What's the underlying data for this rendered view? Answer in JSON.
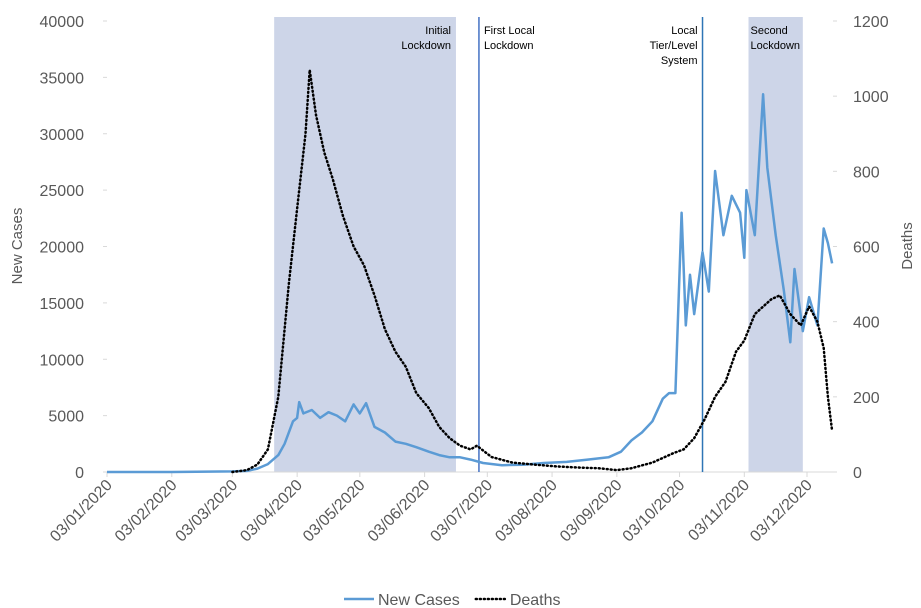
{
  "chart_data": {
    "type": "line",
    "x_title": null,
    "y_title": "New Cases",
    "y2_title": "Deaths",
    "xlim": [
      "03/01/2020",
      "15/12/2020"
    ],
    "xticks": [
      "03/01/2020",
      "03/02/2020",
      "03/03/2020",
      "03/04/2020",
      "03/05/2020",
      "03/06/2020",
      "03/07/2020",
      "03/08/2020",
      "03/09/2020",
      "03/10/2020",
      "03/11/2020",
      "03/12/2020"
    ],
    "ylim": [
      0,
      40000
    ],
    "yticks": [
      0,
      5000,
      10000,
      15000,
      20000,
      25000,
      30000,
      35000,
      40000
    ],
    "y2lim": [
      0,
      1200
    ],
    "y2ticks": [
      0,
      200,
      400,
      600,
      800,
      1000,
      1200
    ],
    "regions": [
      {
        "lines": [
          "Initial",
          "Lockdown"
        ],
        "start": "23/03/2020",
        "end": "18/06/2020",
        "color": "#cdd5e8"
      },
      {
        "lines": [
          "Second",
          "Lockdown"
        ],
        "start": "05/11/2020",
        "end": "01/12/2020",
        "color": "#cdd5e8"
      }
    ],
    "vlines": [
      {
        "lines": [
          "First Local",
          "Lockdown"
        ],
        "at": "29/06/2020",
        "color": "#4472c4"
      },
      {
        "lines": [
          "Local",
          "Tier/Level",
          "System"
        ],
        "at": "14/10/2020",
        "color": "#2e75b6"
      }
    ],
    "series": [
      {
        "name": "New Cases",
        "color": "#5b9bd5",
        "dash": "solid",
        "axis": "y",
        "x": [
          "03/01/2020",
          "03/02/2020",
          "03/03/2020",
          "10/03/2020",
          "15/03/2020",
          "20/03/2020",
          "25/03/2020",
          "28/03/2020",
          "01/04/2020",
          "03/04/2020",
          "04/04/2020",
          "06/04/2020",
          "10/04/2020",
          "14/04/2020",
          "18/04/2020",
          "22/04/2020",
          "26/04/2020",
          "30/04/2020",
          "03/05/2020",
          "06/05/2020",
          "10/05/2020",
          "15/05/2020",
          "20/05/2020",
          "25/05/2020",
          "30/05/2020",
          "05/06/2020",
          "10/06/2020",
          "15/06/2020",
          "20/06/2020",
          "25/06/2020",
          "01/07/2020",
          "10/07/2020",
          "20/07/2020",
          "30/07/2020",
          "10/08/2020",
          "20/08/2020",
          "30/08/2020",
          "05/09/2020",
          "10/09/2020",
          "15/09/2020",
          "20/09/2020",
          "25/09/2020",
          "28/09/2020",
          "01/10/2020",
          "04/10/2020",
          "06/10/2020",
          "08/10/2020",
          "10/10/2020",
          "14/10/2020",
          "17/10/2020",
          "20/10/2020",
          "24/10/2020",
          "28/10/2020",
          "01/11/2020",
          "03/11/2020",
          "04/11/2020",
          "08/11/2020",
          "12/11/2020",
          "14/11/2020",
          "18/11/2020",
          "22/11/2020",
          "25/11/2020",
          "27/11/2020",
          "01/12/2020",
          "04/12/2020",
          "08/12/2020",
          "11/12/2020",
          "13/12/2020",
          "15/12/2020"
        ],
        "values": [
          0,
          0,
          50,
          100,
          300,
          700,
          1500,
          2500,
          4500,
          4800,
          6200,
          5200,
          5500,
          4800,
          5300,
          5000,
          4500,
          6000,
          5200,
          6100,
          4000,
          3500,
          2700,
          2500,
          2200,
          1800,
          1500,
          1300,
          1300,
          1100,
          800,
          600,
          650,
          800,
          900,
          1100,
          1300,
          1800,
          2800,
          3500,
          4500,
          6500,
          7000,
          7000,
          23000,
          13000,
          17500,
          14000,
          19500,
          16000,
          26700,
          21000,
          24500,
          23000,
          19000,
          25000,
          21000,
          33500,
          27000,
          21000,
          16000,
          11500,
          18000,
          12500,
          15500,
          13000,
          21600,
          20300,
          18500
        ]
      },
      {
        "name": "Deaths",
        "color": "#000000",
        "dash": "dotted",
        "axis": "y2",
        "x": [
          "03/03/2020",
          "10/03/2020",
          "15/03/2020",
          "20/03/2020",
          "25/03/2020",
          "30/03/2020",
          "03/04/2020",
          "07/04/2020",
          "09/04/2020",
          "12/04/2020",
          "16/04/2020",
          "20/04/2020",
          "25/04/2020",
          "30/04/2020",
          "05/05/2020",
          "10/05/2020",
          "15/05/2020",
          "20/05/2020",
          "25/05/2020",
          "30/05/2020",
          "05/06/2020",
          "10/06/2020",
          "15/06/2020",
          "20/06/2020",
          "25/06/2020",
          "28/06/2020",
          "05/07/2020",
          "15/07/2020",
          "25/07/2020",
          "05/08/2020",
          "15/08/2020",
          "25/08/2020",
          "03/09/2020",
          "10/09/2020",
          "20/09/2020",
          "30/09/2020",
          "05/10/2020",
          "10/10/2020",
          "15/10/2020",
          "20/10/2020",
          "25/10/2020",
          "30/10/2020",
          "03/11/2020",
          "08/11/2020",
          "12/11/2020",
          "16/11/2020",
          "20/11/2020",
          "25/11/2020",
          "30/11/2020",
          "04/12/2020",
          "08/12/2020",
          "11/12/2020",
          "13/12/2020",
          "15/12/2020"
        ],
        "values": [
          0,
          5,
          20,
          60,
          200,
          500,
          700,
          900,
          1070,
          950,
          850,
          780,
          680,
          600,
          550,
          470,
          380,
          320,
          280,
          210,
          170,
          120,
          90,
          70,
          60,
          70,
          40,
          25,
          20,
          15,
          12,
          10,
          5,
          10,
          25,
          50,
          60,
          90,
          140,
          200,
          240,
          320,
          350,
          420,
          440,
          460,
          470,
          420,
          390,
          440,
          400,
          330,
          200,
          110
        ]
      }
    ],
    "legend": "bottom"
  }
}
